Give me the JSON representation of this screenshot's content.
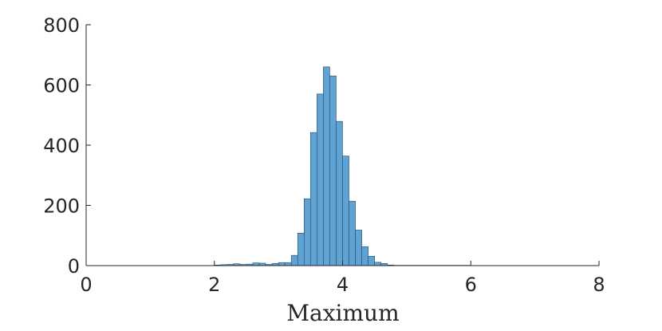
{
  "chart_data": {
    "type": "bar",
    "title": "",
    "xlabel": "Maximum",
    "ylabel": "",
    "xlim": [
      0,
      8
    ],
    "ylim": [
      0,
      800
    ],
    "x_ticks": [
      "0",
      "2",
      "4",
      "6",
      "8"
    ],
    "y_ticks": [
      "0",
      "200",
      "400",
      "600",
      "800"
    ],
    "grid": false,
    "bar_color": "#5fa2d4",
    "bin_width": 0.1,
    "bin_edges_start": 2.0,
    "values": [
      2,
      3,
      4,
      6,
      4,
      5,
      9,
      8,
      4,
      7,
      10,
      10,
      34,
      108,
      222,
      442,
      570,
      660,
      630,
      479,
      364,
      214,
      118,
      63,
      31,
      11,
      7,
      2,
      1,
      1,
      1,
      1,
      1,
      1,
      1,
      1,
      1,
      1,
      1,
      1
    ]
  }
}
